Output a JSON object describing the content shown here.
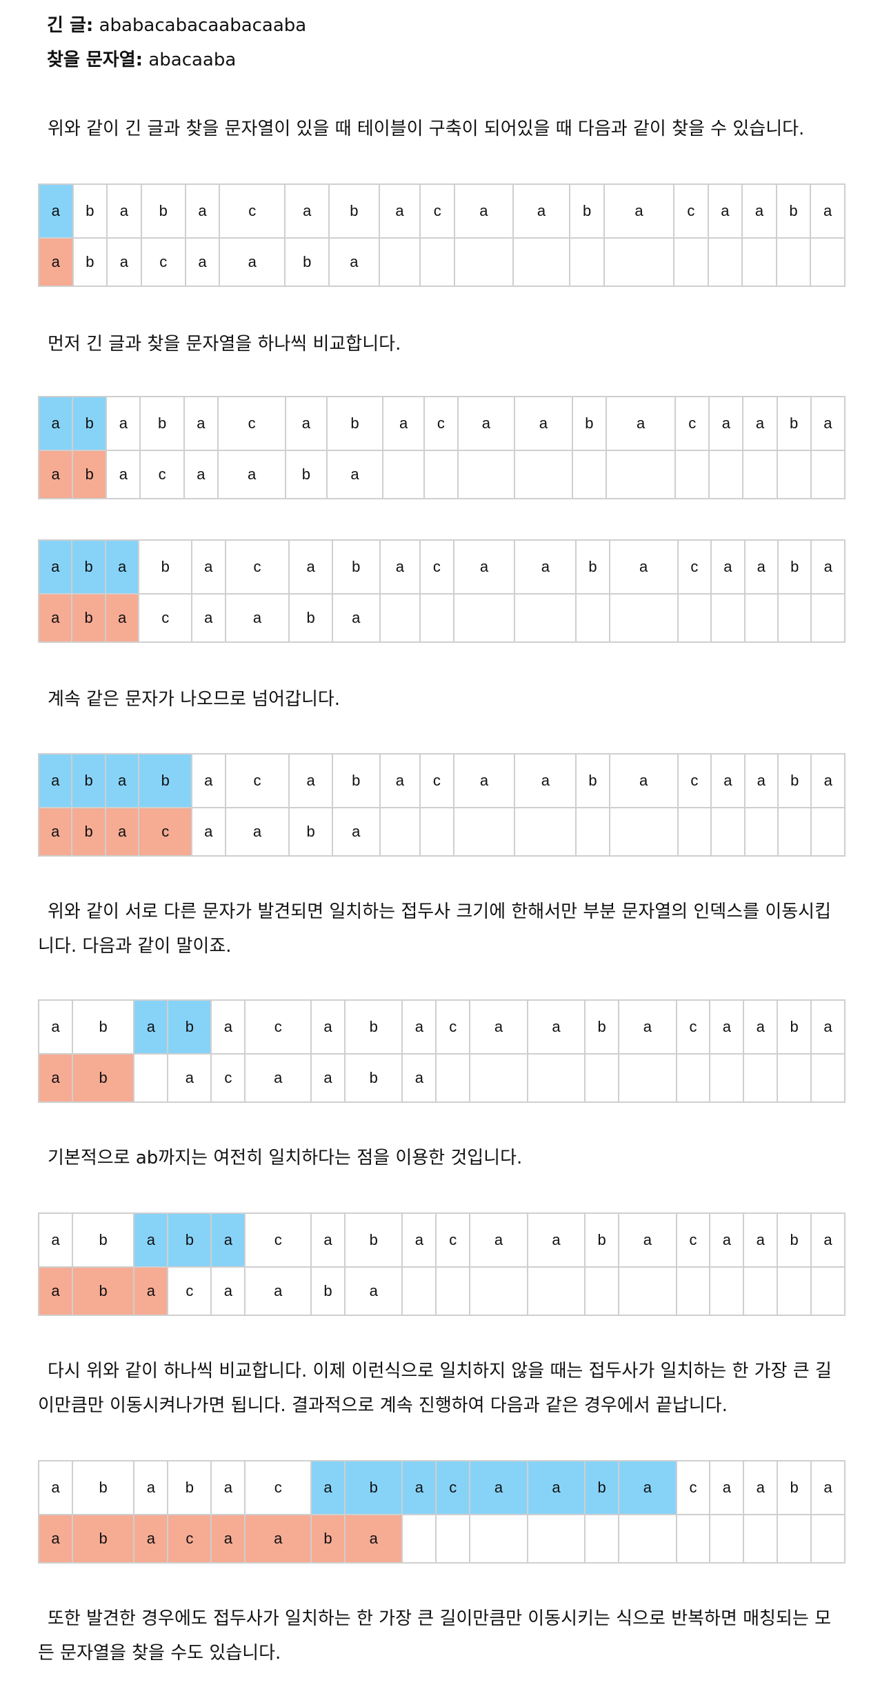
{
  "header": {
    "text_label": "긴 글:",
    "text_value": "ababacabacaabacaaba",
    "pattern_label": "찾을 문자열:",
    "pattern_value": "abacaaba"
  },
  "colors": {
    "text_highlight": "#87d3f8",
    "pattern_highlight": "#f6ab93",
    "border": "#cfcfcf"
  },
  "paragraphs": [
    "위와 같이 긴 글과 찾을 문자열이 있을 때 테이블이 구축이 되어있을 때 다음과 같이 찾을 수 있습니다.",
    "먼저 긴 글과 찾을 문자열을 하나씩 비교합니다.",
    "계속 같은 문자가 나오므로 넘어갑니다.",
    "위와 같이 서로 다른 문자가 발견되면 일치하는 접두사 크기에 한해서만 부분 문자열의 인덱스를 이동시킵니다. 다음과 같이 말이죠.",
    "기본적으로 ab까지는 여전히 일치하다는 점을 이용한 것입니다.",
    "다시 위와 같이 하나씩 비교합니다. 이제 이런식으로 일치하지 않을 때는 접두사가 일치하는 한 가장 큰 길이만큼만 이동시켜나가면 됩니다. 결과적으로 계속 진행하여 다음과 같은 경우에서 끝납니다.",
    "또한 발견한 경우에도 접두사가 일치하는 한 가장 큰 길이만큼만 이동시키는 식으로 반복하면 매칭되는 모든 문자열을 찾을 수도 있습니다."
  ],
  "tables": [
    {
      "top": [
        "a",
        "b",
        "a",
        "b",
        "a",
        "c",
        "a",
        "b",
        "a",
        "c",
        "a",
        "a",
        "b",
        "a",
        "c",
        "a",
        "a",
        "b",
        "a"
      ],
      "bottom": [
        "a",
        "b",
        "a",
        "c",
        "a",
        "a",
        "b",
        "a",
        "",
        "",
        "",
        "",
        "",
        "",
        "",
        "",
        "",
        "",
        ""
      ],
      "top_hl": [
        0
      ],
      "bottom_hl": [
        0
      ]
    },
    {
      "top": [
        "a",
        "b",
        "a",
        "b",
        "a",
        "c",
        "a",
        "b",
        "a",
        "c",
        "a",
        "a",
        "b",
        "a",
        "c",
        "a",
        "a",
        "b",
        "a"
      ],
      "bottom": [
        "a",
        "b",
        "a",
        "c",
        "a",
        "a",
        "b",
        "a",
        "",
        "",
        "",
        "",
        "",
        "",
        "",
        "",
        "",
        "",
        ""
      ],
      "top_hl": [
        0,
        1
      ],
      "bottom_hl": [
        0,
        1
      ]
    },
    {
      "top": [
        "a",
        "b",
        "a",
        "b",
        "a",
        "c",
        "a",
        "b",
        "a",
        "c",
        "a",
        "a",
        "b",
        "a",
        "c",
        "a",
        "a",
        "b",
        "a"
      ],
      "bottom": [
        "a",
        "b",
        "a",
        "c",
        "a",
        "a",
        "b",
        "a",
        "",
        "",
        "",
        "",
        "",
        "",
        "",
        "",
        "",
        "",
        ""
      ],
      "top_hl": [
        0,
        1,
        2
      ],
      "bottom_hl": [
        0,
        1,
        2
      ]
    },
    {
      "top": [
        "a",
        "b",
        "a",
        "b",
        "a",
        "c",
        "a",
        "b",
        "a",
        "c",
        "a",
        "a",
        "b",
        "a",
        "c",
        "a",
        "a",
        "b",
        "a"
      ],
      "bottom": [
        "a",
        "b",
        "a",
        "c",
        "a",
        "a",
        "b",
        "a",
        "",
        "",
        "",
        "",
        "",
        "",
        "",
        "",
        "",
        "",
        ""
      ],
      "top_hl": [
        0,
        1,
        2,
        3
      ],
      "bottom_hl": [
        0,
        1,
        2,
        3
      ]
    },
    {
      "top": [
        "a",
        "b",
        "a",
        "b",
        "a",
        "c",
        "a",
        "b",
        "a",
        "c",
        "a",
        "a",
        "b",
        "a",
        "c",
        "a",
        "a",
        "b",
        "a"
      ],
      "bottom": [
        "a",
        "b",
        "",
        "a",
        "c",
        "a",
        "a",
        "b",
        "a",
        "",
        "",
        "",
        "",
        "",
        "",
        "",
        "",
        "",
        ""
      ],
      "top_hl": [
        2,
        3
      ],
      "bottom_hl": [
        0,
        1
      ]
    },
    {
      "top": [
        "a",
        "b",
        "a",
        "b",
        "a",
        "c",
        "a",
        "b",
        "a",
        "c",
        "a",
        "a",
        "b",
        "a",
        "c",
        "a",
        "a",
        "b",
        "a"
      ],
      "bottom": [
        "a",
        "b",
        "a",
        "c",
        "a",
        "a",
        "b",
        "a",
        "",
        "",
        "",
        "",
        "",
        "",
        "",
        "",
        "",
        "",
        ""
      ],
      "top_hl": [
        2,
        3,
        4
      ],
      "bottom_hl": [
        0,
        1,
        2
      ]
    },
    {
      "top": [
        "a",
        "b",
        "a",
        "b",
        "a",
        "c",
        "a",
        "b",
        "a",
        "c",
        "a",
        "a",
        "b",
        "a",
        "c",
        "a",
        "a",
        "b",
        "a"
      ],
      "bottom": [
        "a",
        "b",
        "a",
        "c",
        "a",
        "a",
        "b",
        "a",
        "",
        "",
        "",
        "",
        "",
        "",
        "",
        "",
        "",
        "",
        ""
      ],
      "top_hl": [
        6,
        7,
        8,
        9,
        10,
        11,
        12,
        13
      ],
      "bottom_hl": [
        0,
        1,
        2,
        3,
        4,
        5,
        6,
        7
      ]
    }
  ]
}
